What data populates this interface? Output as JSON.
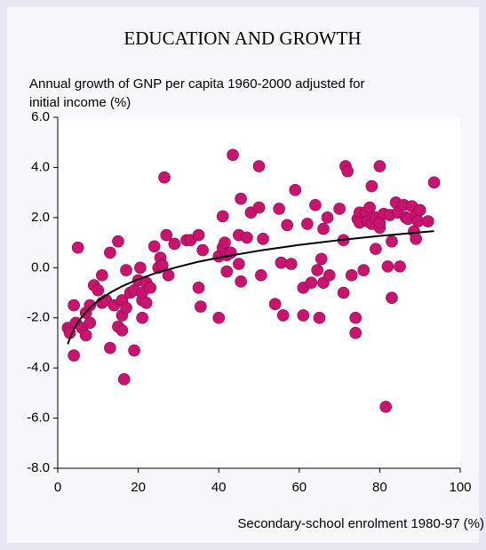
{
  "chart_data": {
    "type": "scatter",
    "title": "EDUCATION AND GROWTH",
    "ylabel": [
      "Annual growth of GNP per capita 1960-2000 adjusted for",
      "initial income (%)"
    ],
    "xlabel": "Secondary-school enrolment 1980-97 (%)",
    "color": "#c8146e",
    "x": [
      2.5,
      3,
      4,
      4,
      5,
      4.5,
      6,
      7,
      7,
      8,
      8,
      9,
      10,
      11,
      11,
      12,
      13,
      13,
      14,
      15,
      15,
      16,
      16,
      16,
      16.5,
      17,
      17,
      18,
      19,
      19,
      20,
      20.5,
      21,
      21,
      21,
      22,
      22,
      23,
      24,
      25,
      25.5,
      26,
      26.5,
      27,
      27.5,
      29,
      32,
      33,
      35,
      35,
      35.5,
      36,
      40,
      40,
      41,
      41,
      41.5,
      42,
      42,
      43,
      43.5,
      45,
      45,
      45.5,
      45.5,
      47,
      48,
      50,
      50,
      50.5,
      51,
      54,
      55,
      55.5,
      56,
      57,
      58,
      59,
      61,
      61,
      62,
      63,
      64,
      64.5,
      65,
      65.5,
      66,
      66,
      67,
      67.5,
      70,
      71,
      71,
      71.5,
      72,
      73,
      74,
      74,
      74.5,
      75,
      75,
      76,
      76.5,
      77,
      77.5,
      78,
      78,
      79,
      79,
      80,
      80,
      80,
      81,
      81.5,
      82,
      82.5,
      83,
      83,
      84,
      84.5,
      85,
      86,
      86.5,
      87,
      88,
      88.5,
      89,
      89,
      89.5,
      90,
      92,
      93.5
    ],
    "values": [
      -2.4,
      -2.6,
      -3.5,
      -1.5,
      0.8,
      -2.2,
      -2.4,
      -1.8,
      -2.7,
      -2.2,
      -1.5,
      -0.7,
      -0.9,
      -0.3,
      -1.4,
      -1.3,
      0.6,
      -3.2,
      -1.5,
      1.05,
      -2.35,
      -1.3,
      -1.9,
      -2.5,
      -4.45,
      -0.1,
      -1.6,
      -1.0,
      -3.3,
      -0.9,
      -0.5,
      0.0,
      -1.3,
      -2.0,
      -1.0,
      -0.6,
      -1.4,
      -0.8,
      0.85,
      0.0,
      0.4,
      0.1,
      3.6,
      1.3,
      -0.3,
      0.95,
      1.1,
      1.1,
      1.3,
      -0.8,
      -1.55,
      0.7,
      -2.0,
      0.45,
      0.8,
      2.05,
      1.0,
      0.5,
      -0.15,
      0.6,
      4.5,
      1.3,
      0.15,
      2.75,
      -0.55,
      1.2,
      2.2,
      4.05,
      2.4,
      -0.3,
      1.15,
      -1.45,
      2.35,
      0.2,
      -1.9,
      1.7,
      0.15,
      3.1,
      -1.9,
      -0.8,
      1.75,
      -0.6,
      2.5,
      -0.1,
      -2.0,
      0.35,
      1.55,
      -0.6,
      2.0,
      -0.3,
      2.35,
      1.1,
      -1.0,
      4.05,
      3.85,
      -0.3,
      -2.0,
      -2.6,
      1.95,
      2.2,
      1.8,
      -0.1,
      2.2,
      1.85,
      2.4,
      1.75,
      3.25,
      2.0,
      0.75,
      4.05,
      1.6,
      1.8,
      2.15,
      -5.55,
      0.05,
      2.1,
      1.05,
      -1.2,
      2.6,
      2.2,
      0.05,
      2.5,
      2.0,
      1.95,
      2.45,
      1.45,
      1.15,
      2.1,
      1.85,
      2.3,
      1.85,
      3.4
    ],
    "trend": {
      "color": "#000000",
      "x": [
        2.5,
        3,
        4,
        5,
        6,
        8,
        10,
        13,
        16,
        20,
        25,
        30,
        35,
        40,
        50,
        60,
        70,
        80,
        93.5
      ],
      "values": [
        -3.05,
        -2.82,
        -2.46,
        -2.19,
        -1.96,
        -1.6,
        -1.32,
        -1.0,
        -0.74,
        -0.46,
        -0.18,
        0.04,
        0.24,
        0.4,
        0.68,
        0.91,
        1.1,
        1.27,
        1.46
      ]
    },
    "xlim": [
      0,
      100
    ],
    "xticks": [
      0,
      20,
      40,
      60,
      80,
      100
    ],
    "ylim": [
      -8,
      6
    ],
    "yticks": [
      {
        "value": -8,
        "label": "-8.0"
      },
      {
        "value": -6,
        "label": "-6.0"
      },
      {
        "value": -4,
        "label": "-4.0"
      },
      {
        "value": -2,
        "label": "-2.0"
      },
      {
        "value": 0,
        "label": "0.0"
      },
      {
        "value": 2,
        "label": "2.0"
      },
      {
        "value": 4,
        "label": "4.0"
      },
      {
        "value": 6,
        "label": "6.0"
      }
    ]
  }
}
